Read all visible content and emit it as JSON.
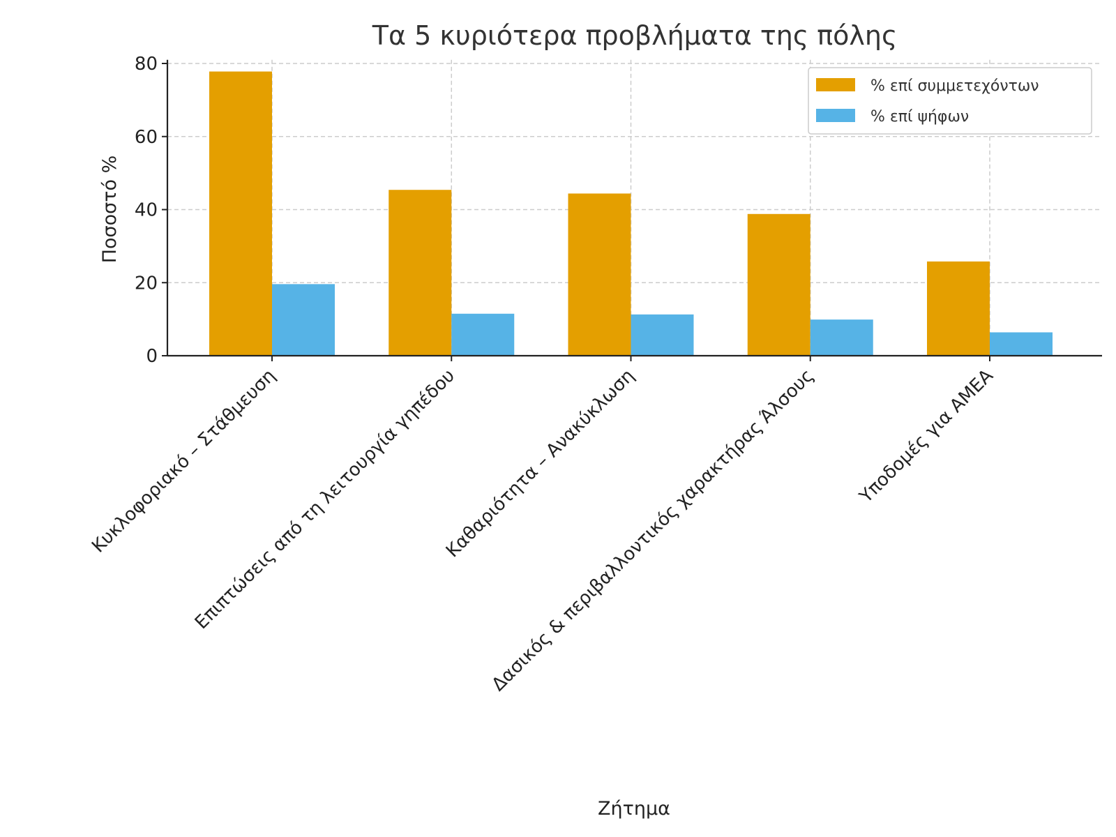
{
  "chart_data": {
    "type": "bar",
    "title": "Τα 5 κυριότερα προβλήματα της πόλης",
    "xlabel": "Ζήτημα",
    "ylabel": "Ποσοστό %",
    "ylim": [
      0,
      81
    ],
    "yticks": [
      0,
      20,
      40,
      60,
      80
    ],
    "grid": true,
    "legend_position": "top-right",
    "categories": [
      "Κυκλοφοριακό – Στάθμευση",
      "Επιπτώσεις από τη λειτουργία γηπέδου",
      "Καθαριότητα – Ανακύκλωση",
      "Δασικός & περιβαλλοντικός χαρακτήρας Άλσους",
      "Υποδομές για ΑΜΕΑ"
    ],
    "series": [
      {
        "name": "% επί συμμετεχόντων",
        "color": "#E49F00",
        "values": [
          77.8,
          45.4,
          44.4,
          38.8,
          25.8
        ]
      },
      {
        "name": "% επί ψήφων",
        "color": "#56B3E6",
        "values": [
          19.6,
          11.5,
          11.3,
          9.9,
          6.4
        ]
      }
    ]
  }
}
